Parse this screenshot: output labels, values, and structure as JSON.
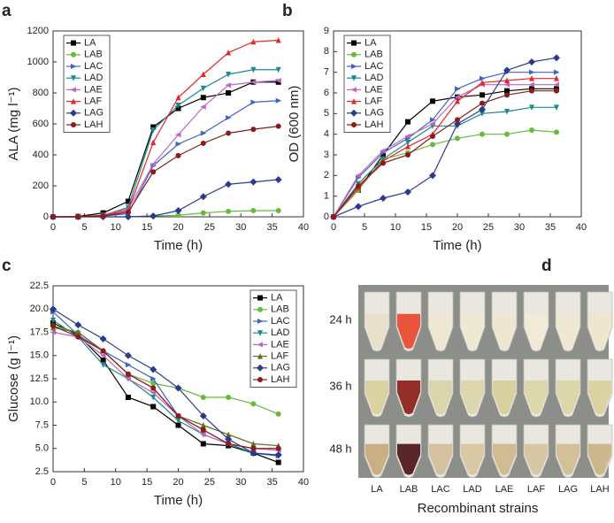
{
  "chart_data": [
    {
      "type": "line",
      "panel_label": "a",
      "xlabel": "Time (h)",
      "ylabel": "ALA (mg l⁻¹)",
      "legend": "upper left",
      "x": [
        0,
        4,
        8,
        12,
        16,
        20,
        24,
        28,
        32,
        36
      ],
      "xlim": [
        0,
        40
      ],
      "xticks": [
        0,
        5,
        10,
        15,
        20,
        25,
        30,
        35,
        40
      ],
      "ylim": [
        0,
        1200
      ],
      "yticks": [
        0,
        200,
        400,
        600,
        800,
        1000,
        1200
      ],
      "series": [
        {
          "name": "LA",
          "color": "#000000",
          "marker": "square",
          "values": [
            0,
            2,
            25,
            100,
            580,
            700,
            770,
            800,
            870,
            870
          ]
        },
        {
          "name": "LAB",
          "color": "#66bb3a",
          "marker": "circle",
          "values": [
            0,
            0,
            0,
            0,
            5,
            10,
            25,
            35,
            40,
            40
          ]
        },
        {
          "name": "LAC",
          "color": "#3f63c4",
          "marker": "triangle-right",
          "values": [
            0,
            0,
            5,
            20,
            330,
            470,
            540,
            640,
            740,
            750
          ]
        },
        {
          "name": "LAD",
          "color": "#1a8a8a",
          "marker": "triangle-down",
          "values": [
            0,
            0,
            10,
            60,
            560,
            720,
            830,
            920,
            950,
            950
          ]
        },
        {
          "name": "LAE",
          "color": "#c066c0",
          "marker": "triangle-left",
          "values": [
            0,
            0,
            10,
            50,
            340,
            530,
            710,
            850,
            870,
            880
          ]
        },
        {
          "name": "LAF",
          "color": "#e8262a",
          "marker": "triangle-up",
          "values": [
            0,
            0,
            10,
            40,
            480,
            770,
            920,
            1060,
            1130,
            1140
          ]
        },
        {
          "name": "LAG",
          "color": "#2b3a8f",
          "marker": "diamond",
          "values": [
            0,
            0,
            0,
            0,
            5,
            40,
            130,
            210,
            225,
            240
          ]
        },
        {
          "name": "LAH",
          "color": "#8b1a1a",
          "marker": "circle",
          "values": [
            0,
            0,
            5,
            30,
            290,
            395,
            475,
            540,
            565,
            585
          ]
        }
      ]
    },
    {
      "type": "line",
      "panel_label": "b",
      "xlabel": "Time (h)",
      "ylabel": "OD (600 nm)",
      "legend": "upper left",
      "x": [
        0,
        4,
        8,
        12,
        16,
        20,
        24,
        28,
        32,
        36
      ],
      "xlim": [
        0,
        40
      ],
      "xticks": [
        0,
        5,
        10,
        15,
        20,
        25,
        30,
        35,
        40
      ],
      "ylim": [
        0,
        9
      ],
      "yticks": [
        0,
        1,
        2,
        3,
        4,
        5,
        6,
        7,
        8,
        9
      ],
      "series": [
        {
          "name": "LA",
          "color": "#000000",
          "marker": "square",
          "values": [
            0,
            1.3,
            3.0,
            4.6,
            5.6,
            5.8,
            5.9,
            6.1,
            6.2,
            6.2
          ]
        },
        {
          "name": "LAB",
          "color": "#66bb3a",
          "marker": "circle",
          "values": [
            0,
            1.3,
            2.8,
            3.1,
            3.5,
            3.8,
            4.0,
            4.0,
            4.2,
            4.1
          ]
        },
        {
          "name": "LAC",
          "color": "#3f63c4",
          "marker": "triangle-right",
          "values": [
            0,
            1.9,
            3.1,
            3.8,
            4.7,
            6.2,
            6.7,
            7.0,
            7.0,
            7.0
          ]
        },
        {
          "name": "LAD",
          "color": "#1a8a8a",
          "marker": "triangle-down",
          "values": [
            0,
            1.6,
            2.8,
            3.6,
            4.4,
            4.4,
            5.0,
            5.1,
            5.3,
            5.3
          ]
        },
        {
          "name": "LAE",
          "color": "#c066c0",
          "marker": "triangle-left",
          "values": [
            0,
            2.0,
            3.2,
            3.9,
            4.5,
            5.8,
            6.4,
            6.4,
            6.4,
            6.4
          ]
        },
        {
          "name": "LAF",
          "color": "#e8262a",
          "marker": "triangle-up",
          "values": [
            0,
            1.4,
            2.7,
            3.4,
            4.0,
            5.6,
            6.5,
            6.6,
            6.7,
            6.7
          ]
        },
        {
          "name": "LAG",
          "color": "#2b3a8f",
          "marker": "diamond",
          "values": [
            0,
            0.5,
            0.9,
            1.2,
            2.0,
            4.5,
            5.2,
            7.1,
            7.5,
            7.7
          ]
        },
        {
          "name": "LAH",
          "color": "#8b1a1a",
          "marker": "circle",
          "values": [
            0,
            1.5,
            2.6,
            3.0,
            3.9,
            4.7,
            5.5,
            5.9,
            6.1,
            6.1
          ]
        }
      ]
    },
    {
      "type": "line",
      "panel_label": "c",
      "xlabel": "Time (h)",
      "ylabel": "Glucose (g l⁻¹)",
      "legend": "upper right",
      "x": [
        0,
        4,
        8,
        12,
        16,
        20,
        24,
        28,
        32,
        36
      ],
      "xlim": [
        0,
        40
      ],
      "xticks": [
        0,
        5,
        10,
        15,
        20,
        25,
        30,
        35,
        40
      ],
      "ylim": [
        2.5,
        22.5
      ],
      "yticks": [
        2.5,
        {
          "value": 5,
          "label": "5.0"
        },
        7.5,
        {
          "value": 10,
          "label": "10.0"
        },
        12.5,
        {
          "value": 15,
          "label": "15.0"
        },
        17.5,
        {
          "value": 20,
          "label": "20.0"
        },
        22.5
      ],
      "series": [
        {
          "name": "LA",
          "color": "#000000",
          "marker": "square",
          "values": [
            18.5,
            17.2,
            14.5,
            10.5,
            9.5,
            7.5,
            5.5,
            5.3,
            4.5,
            3.5
          ]
        },
        {
          "name": "LAB",
          "color": "#66bb3a",
          "marker": "circle",
          "values": [
            18.2,
            17.5,
            15.5,
            13.0,
            12.0,
            11.5,
            10.5,
            10.5,
            9.8,
            8.7
          ]
        },
        {
          "name": "LAC",
          "color": "#3f63c4",
          "marker": "triangle-right",
          "values": [
            19.7,
            17.2,
            15.5,
            14.0,
            12.5,
            8.5,
            7.0,
            5.5,
            4.5,
            4.2
          ]
        },
        {
          "name": "LAD",
          "color": "#1a8a8a",
          "marker": "triangle-down",
          "values": [
            18.8,
            17.0,
            14.0,
            12.5,
            10.5,
            8.0,
            6.5,
            5.5,
            4.5,
            4.2
          ]
        },
        {
          "name": "LAE",
          "color": "#c066c0",
          "marker": "triangle-left",
          "values": [
            17.5,
            17.0,
            15.0,
            12.5,
            11.0,
            8.5,
            6.5,
            5.5,
            5.0,
            4.8
          ]
        },
        {
          "name": "LAF",
          "color": "#6b6b1f",
          "marker": "triangle-up",
          "values": [
            18.0,
            17.5,
            15.5,
            13.0,
            11.5,
            8.5,
            7.5,
            6.5,
            5.5,
            5.3
          ]
        },
        {
          "name": "LAG",
          "color": "#2b3a8f",
          "marker": "diamond",
          "values": [
            20.0,
            18.3,
            16.8,
            15.0,
            13.5,
            11.5,
            8.5,
            6.0,
            4.5,
            4.3
          ]
        },
        {
          "name": "LAH",
          "color": "#8b1a1a",
          "marker": "circle",
          "values": [
            18.2,
            17.0,
            15.5,
            13.0,
            11.5,
            8.5,
            7.0,
            5.5,
            5.0,
            5.0
          ]
        }
      ]
    }
  ],
  "photo": {
    "panel_label": "d",
    "rows": [
      "24 h",
      "36 h",
      "48 h"
    ],
    "columns": [
      "LA",
      "LAB",
      "LAC",
      "LAD",
      "LAE",
      "LAF",
      "LAG",
      "LAH"
    ],
    "xlabel": "Recombinant strains"
  }
}
